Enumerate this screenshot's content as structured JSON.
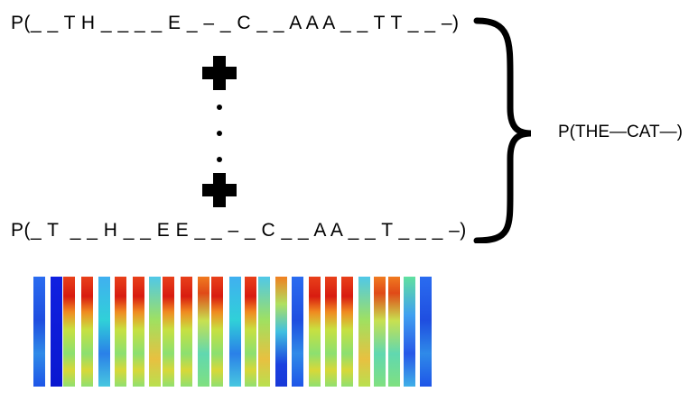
{
  "alignments": [
    "P(_ _ T H _ _ _ _ E _ – _ C _ _ A A A _ _ T T _ _ –)",
    "P(_ T  _ _ H _ _ E E _ _ – _ C _ _ A A _ _ T _ _ _ –)"
  ],
  "result": "P(THE—CAT—)",
  "spectrogram_strips": [
    "blue",
    "deepblue",
    "red",
    "red",
    "cyan",
    "red",
    "red",
    "green",
    "red",
    "red",
    "orange",
    "red",
    "cyan",
    "red",
    "green",
    "orangeblue",
    "blue",
    "red",
    "red",
    "red",
    "green",
    "orange",
    "orange",
    "bluegreen",
    "blue"
  ]
}
